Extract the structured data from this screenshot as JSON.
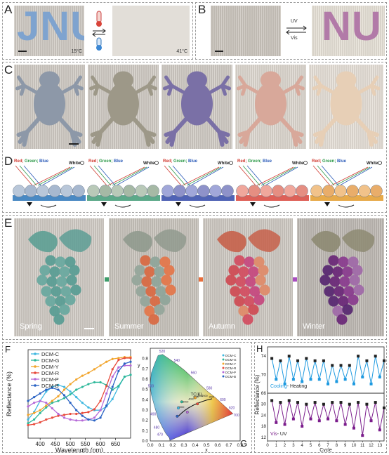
{
  "panels": {
    "a": {
      "label": "A",
      "word": "JNU",
      "temp_cold": "15°C",
      "temp_hot": "41°C"
    },
    "b": {
      "label": "B",
      "word": "NU",
      "uv": "UV",
      "vis": "Vis"
    },
    "c": {
      "label": "C"
    },
    "d": {
      "label": "D",
      "red": "Red",
      "green": "Green",
      "blue": "Blue",
      "white": "White"
    },
    "e": {
      "label": "E",
      "seasons": [
        "Spring",
        "Summer",
        "Autumn",
        "Winter"
      ]
    },
    "f": {
      "label": "F"
    },
    "g": {
      "label": "G"
    },
    "h": {
      "label": "H"
    }
  },
  "chart_data": [
    {
      "type": "line",
      "panel": "F",
      "xlabel": "Wavelength (nm)",
      "ylabel": "Reflectance (%)",
      "xlim": [
        360,
        700
      ],
      "xticks": [
        400,
        450,
        500,
        550,
        600,
        650
      ],
      "x": [
        360,
        380,
        400,
        420,
        440,
        460,
        480,
        500,
        520,
        540,
        560,
        580,
        600,
        620,
        640,
        660,
        680,
        700
      ],
      "series": [
        {
          "name": "DCM-C",
          "color": "#3fb8e0",
          "values": [
            20,
            28,
            40,
            50,
            55,
            57,
            55,
            50,
            44,
            38,
            33,
            30,
            30,
            34,
            42,
            55,
            66,
            68
          ]
        },
        {
          "name": "DCM-G",
          "color": "#2db89a",
          "values": [
            16,
            20,
            27,
            33,
            38,
            40,
            43,
            47,
            52,
            55,
            58,
            60,
            60,
            57,
            52,
            56,
            66,
            68
          ]
        },
        {
          "name": "DCM-Y",
          "color": "#f2a52c",
          "values": [
            25,
            27,
            30,
            35,
            40,
            45,
            52,
            58,
            63,
            67,
            70,
            74,
            78,
            82,
            85,
            86,
            87,
            87
          ]
        },
        {
          "name": "DCM-R",
          "color": "#e84b3c",
          "values": [
            14,
            15,
            17,
            20,
            22,
            24,
            25,
            26,
            26,
            27,
            28,
            31,
            40,
            56,
            74,
            84,
            86,
            86
          ]
        },
        {
          "name": "DCM-P",
          "color": "#b66ad8",
          "values": [
            34,
            38,
            40,
            38,
            32,
            26,
            22,
            20,
            19,
            19,
            20,
            22,
            30,
            48,
            66,
            76,
            78,
            78
          ]
        },
        {
          "name": "DCM-B",
          "color": "#2a63c4",
          "values": [
            40,
            44,
            48,
            52,
            54,
            52,
            46,
            38,
            30,
            24,
            20,
            19,
            22,
            35,
            55,
            72,
            80,
            82
          ]
        }
      ]
    },
    {
      "type": "scatter",
      "panel": "G",
      "xlabel": "x",
      "ylabel": "y",
      "xlim": [
        0,
        0.8
      ],
      "ylim": [
        0,
        0.9
      ],
      "xticks": [
        0.0,
        0.1,
        0.2,
        0.3,
        0.4,
        0.5,
        0.6,
        0.7,
        0.8
      ],
      "yticks": [
        0.0,
        0.1,
        0.2,
        0.3,
        0.4,
        0.5,
        0.6,
        0.7,
        0.8
      ],
      "locus_wavelengths": [
        "470",
        "480",
        "490",
        "500",
        "520",
        "540",
        "560",
        "580",
        "600",
        "620",
        "700"
      ],
      "annotation": "TC(K)",
      "cct_labels": [
        "10000",
        "6000",
        "4000",
        "3000",
        "2500",
        "2000",
        "1500"
      ],
      "series": [
        {
          "name": "DCM-C",
          "color": "#3fb8e0",
          "values": [
            [
              0.25,
              0.32
            ]
          ]
        },
        {
          "name": "DCM-G",
          "color": "#2db89a",
          "values": [
            [
              0.28,
              0.38
            ]
          ]
        },
        {
          "name": "DCM-Y",
          "color": "#f2a52c",
          "values": [
            [
              0.4,
              0.42
            ]
          ]
        },
        {
          "name": "DCM-R",
          "color": "#e84b3c",
          "values": [
            [
              0.42,
              0.36
            ]
          ]
        },
        {
          "name": "DCM-P",
          "color": "#b66ad8",
          "values": [
            [
              0.33,
              0.28
            ]
          ]
        },
        {
          "name": "DCM-B",
          "color": "#2a63c4",
          "values": [
            [
              0.24,
              0.24
            ]
          ]
        }
      ]
    },
    {
      "type": "line",
      "panel": "H",
      "xlabel": "Cycle",
      "ylabel": "Reflectance (%)",
      "xlim": [
        0,
        13.5
      ],
      "xticks": [
        0,
        1,
        2,
        3,
        4,
        5,
        6,
        7,
        8,
        9,
        10,
        11,
        12,
        13
      ],
      "x": [
        0.5,
        1,
        1.5,
        2,
        2.5,
        3,
        3.5,
        4,
        4.5,
        5,
        5.5,
        6,
        6.5,
        7,
        7.5,
        8,
        8.5,
        9,
        9.5,
        10,
        10.5,
        11,
        11.5,
        12,
        12.5,
        13,
        13.5
      ],
      "subplots": [
        {
          "ylim": [
            66,
            76
          ],
          "yticks": [
            66,
            70,
            74
          ],
          "legend": [
            "Cooling",
            "Heating"
          ],
          "color": "#1e9ae0",
          "values": [
            73.5,
            69,
            73,
            68,
            74,
            69,
            73,
            68.5,
            73.5,
            69,
            73,
            69,
            73,
            68,
            72,
            68.5,
            72,
            69,
            72,
            68,
            74,
            69.5,
            73,
            68,
            74,
            69.5,
            73
          ]
        },
        {
          "ylim": [
            10,
            36
          ],
          "yticks": [
            12,
            18,
            24,
            30
          ],
          "legend": [
            "Vis",
            "UV"
          ],
          "color": "#7b1d8c",
          "values": [
            32,
            20,
            31,
            19,
            32,
            22,
            31,
            18,
            30,
            22,
            31,
            21,
            30,
            22,
            31,
            21,
            31,
            19,
            30,
            17,
            31,
            13,
            30,
            21,
            31,
            16,
            28
          ]
        }
      ]
    }
  ]
}
